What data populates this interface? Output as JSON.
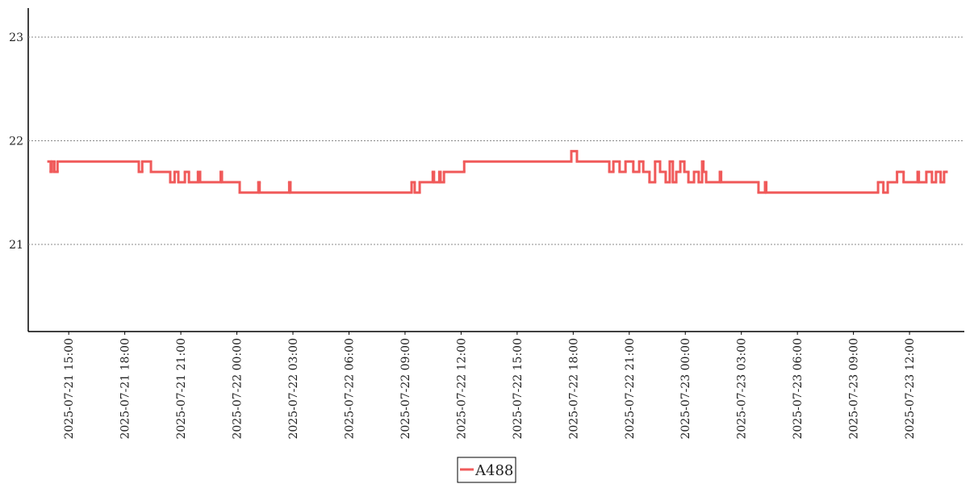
{
  "chart_data": {
    "type": "line",
    "step": "post",
    "color": "#f05a5a",
    "grid": true,
    "xlim": [
      "2025-07-21 12:50",
      "2025-07-23 14:56"
    ],
    "ylim": [
      20.16,
      23.28
    ],
    "yticks": [
      21,
      22,
      23
    ],
    "xticks": [
      "2025-07-21 15:00",
      "2025-07-21 18:00",
      "2025-07-21 21:00",
      "2025-07-22 00:00",
      "2025-07-22 03:00",
      "2025-07-22 06:00",
      "2025-07-22 09:00",
      "2025-07-22 12:00",
      "2025-07-22 15:00",
      "2025-07-22 18:00",
      "2025-07-22 21:00",
      "2025-07-23 00:00",
      "2025-07-23 03:00",
      "2025-07-23 06:00",
      "2025-07-23 09:00",
      "2025-07-23 12:00"
    ],
    "x": [
      "2025-07-21 13:55",
      "2025-07-21 14:02",
      "2025-07-21 14:06",
      "2025-07-21 14:14",
      "2025-07-21 14:24",
      "2025-07-21 18:45",
      "2025-07-21 18:56",
      "2025-07-21 19:24",
      "2025-07-21 20:26",
      "2025-07-21 20:40",
      "2025-07-21 20:52",
      "2025-07-21 21:13",
      "2025-07-21 21:26",
      "2025-07-21 21:55",
      "2025-07-21 22:02",
      "2025-07-21 23:08",
      "2025-07-21 23:12",
      "2025-07-22 00:09",
      "2025-07-22 01:09",
      "2025-07-22 01:13",
      "2025-07-22 02:48",
      "2025-07-22 02:52",
      "2025-07-22 09:21",
      "2025-07-22 09:31",
      "2025-07-22 09:47",
      "2025-07-22 10:29",
      "2025-07-22 10:33",
      "2025-07-22 10:50",
      "2025-07-22 10:54",
      "2025-07-22 11:05",
      "2025-07-22 12:10",
      "2025-07-22 17:54",
      "2025-07-22 18:12",
      "2025-07-22 19:56",
      "2025-07-22 20:09",
      "2025-07-22 20:29",
      "2025-07-22 20:48",
      "2025-07-22 21:13",
      "2025-07-22 21:32",
      "2025-07-22 21:45",
      "2025-07-22 22:05",
      "2025-07-22 22:23",
      "2025-07-22 22:39",
      "2025-07-22 22:57",
      "2025-07-22 23:10",
      "2025-07-22 23:20",
      "2025-07-22 23:31",
      "2025-07-22 23:44",
      "2025-07-22 23:57",
      "2025-07-23 00:10",
      "2025-07-23 00:28",
      "2025-07-23 00:43",
      "2025-07-23 00:54",
      "2025-07-23 00:58",
      "2025-07-23 01:07",
      "2025-07-23 01:51",
      "2025-07-23 01:55",
      "2025-07-23 03:55",
      "2025-07-23 04:16",
      "2025-07-23 04:20",
      "2025-07-23 10:19",
      "2025-07-23 10:36",
      "2025-07-23 10:50",
      "2025-07-23 11:20",
      "2025-07-23 11:41",
      "2025-07-23 12:26",
      "2025-07-23 12:30",
      "2025-07-23 12:54",
      "2025-07-23 13:12",
      "2025-07-23 13:25",
      "2025-07-23 13:40",
      "2025-07-23 13:51",
      "2025-07-23 13:59"
    ],
    "series": [
      {
        "name": "A488",
        "color": "#f05a5a",
        "values": [
          21.8,
          21.7,
          21.8,
          21.7,
          21.8,
          21.7,
          21.8,
          21.7,
          21.6,
          21.7,
          21.6,
          21.7,
          21.6,
          21.7,
          21.6,
          21.7,
          21.6,
          21.5,
          21.6,
          21.5,
          21.6,
          21.5,
          21.6,
          21.5,
          21.6,
          21.7,
          21.6,
          21.7,
          21.6,
          21.7,
          21.8,
          21.9,
          21.8,
          21.7,
          21.8,
          21.7,
          21.8,
          21.7,
          21.8,
          21.7,
          21.6,
          21.8,
          21.7,
          21.6,
          21.8,
          21.6,
          21.7,
          21.8,
          21.7,
          21.6,
          21.7,
          21.6,
          21.8,
          21.7,
          21.6,
          21.7,
          21.6,
          21.5,
          21.6,
          21.5,
          21.6,
          21.5,
          21.6,
          21.7,
          21.6,
          21.7,
          21.6,
          21.7,
          21.6,
          21.7,
          21.6,
          21.7,
          21.7
        ]
      }
    ]
  }
}
